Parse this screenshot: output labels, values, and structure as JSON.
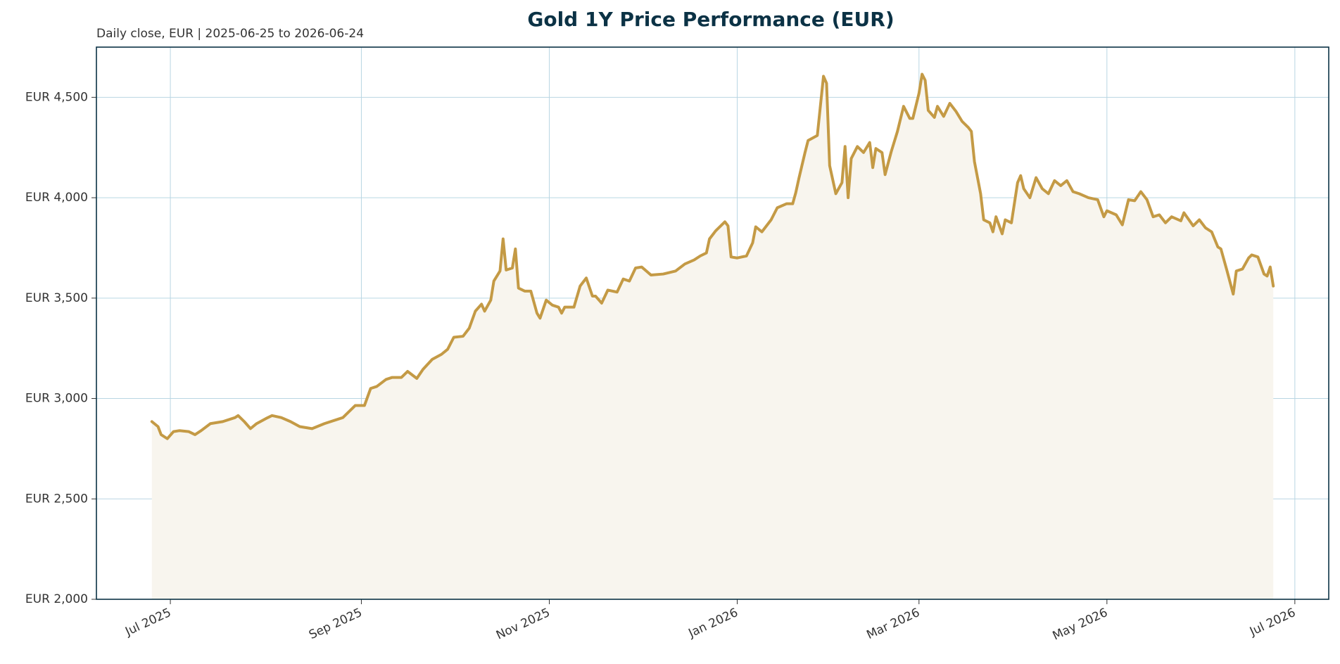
{
  "chart_data": {
    "type": "line",
    "title": "Gold 1Y Price Performance (EUR)",
    "subtitle": "Daily close, EUR | 2025-06-25 to 2026-06-24",
    "x": [
      "2025-06-25",
      "2025-06-27",
      "2025-06-28",
      "2025-06-30",
      "2025-07-02",
      "2025-07-04",
      "2025-07-07",
      "2025-07-09",
      "2025-07-11",
      "2025-07-14",
      "2025-07-18",
      "2025-07-22",
      "2025-07-23",
      "2025-07-25",
      "2025-07-27",
      "2025-07-29",
      "2025-08-01",
      "2025-08-03",
      "2025-08-06",
      "2025-08-09",
      "2025-08-12",
      "2025-08-16",
      "2025-08-20",
      "2025-08-26",
      "2025-08-30",
      "2025-09-02",
      "2025-09-04",
      "2025-09-06",
      "2025-09-09",
      "2025-09-11",
      "2025-09-14",
      "2025-09-16",
      "2025-09-19",
      "2025-09-21",
      "2025-09-24",
      "2025-09-27",
      "2025-09-29",
      "2025-10-01",
      "2025-10-04",
      "2025-10-06",
      "2025-10-08",
      "2025-10-10",
      "2025-10-11",
      "2025-10-13",
      "2025-10-14",
      "2025-10-16",
      "2025-10-17",
      "2025-10-18",
      "2025-10-20",
      "2025-10-21",
      "2025-10-22",
      "2025-10-24",
      "2025-10-26",
      "2025-10-28",
      "2025-10-29",
      "2025-10-31",
      "2025-11-02",
      "2025-11-04",
      "2025-11-05",
      "2025-11-06",
      "2025-11-09",
      "2025-11-11",
      "2025-11-13",
      "2025-11-15",
      "2025-11-16",
      "2025-11-18",
      "2025-11-20",
      "2025-11-23",
      "2025-11-25",
      "2025-11-27",
      "2025-11-29",
      "2025-12-01",
      "2025-12-04",
      "2025-12-08",
      "2025-12-12",
      "2025-12-15",
      "2025-12-18",
      "2025-12-20",
      "2025-12-22",
      "2025-12-23",
      "2025-12-25",
      "2025-12-28",
      "2025-12-29",
      "2025-12-30",
      "2026-01-01",
      "2026-01-04",
      "2026-01-06",
      "2026-01-07",
      "2026-01-09",
      "2026-01-12",
      "2026-01-14",
      "2026-01-17",
      "2026-01-19",
      "2026-01-20",
      "2026-01-21",
      "2026-01-23",
      "2026-01-24",
      "2026-01-27",
      "2026-01-29",
      "2026-01-30",
      "2026-01-31",
      "2026-02-02",
      "2026-02-04",
      "2026-02-05",
      "2026-02-06",
      "2026-02-07",
      "2026-02-09",
      "2026-02-11",
      "2026-02-13",
      "2026-02-14",
      "2026-02-15",
      "2026-02-17",
      "2026-02-18",
      "2026-02-20",
      "2026-02-22",
      "2026-02-24",
      "2026-02-26",
      "2026-02-27",
      "2026-03-01",
      "2026-03-02",
      "2026-03-03",
      "2026-03-04",
      "2026-03-06",
      "2026-03-07",
      "2026-03-09",
      "2026-03-11",
      "2026-03-13",
      "2026-03-15",
      "2026-03-17",
      "2026-03-18",
      "2026-03-19",
      "2026-03-21",
      "2026-03-22",
      "2026-03-24",
      "2026-03-25",
      "2026-03-26",
      "2026-03-28",
      "2026-03-29",
      "2026-03-31",
      "2026-04-02",
      "2026-04-03",
      "2026-04-04",
      "2026-04-06",
      "2026-04-08",
      "2026-04-10",
      "2026-04-12",
      "2026-04-14",
      "2026-04-16",
      "2026-04-18",
      "2026-04-20",
      "2026-04-22",
      "2026-04-25",
      "2026-04-28",
      "2026-04-30",
      "2026-05-01",
      "2026-05-04",
      "2026-05-06",
      "2026-05-08",
      "2026-05-10",
      "2026-05-12",
      "2026-05-14",
      "2026-05-16",
      "2026-05-18",
      "2026-05-20",
      "2026-05-22",
      "2026-05-25",
      "2026-05-26",
      "2026-05-29",
      "2026-05-31",
      "2026-06-02",
      "2026-06-04",
      "2026-06-06",
      "2026-06-07",
      "2026-06-09",
      "2026-06-11",
      "2026-06-12",
      "2026-06-14",
      "2026-06-16",
      "2026-06-17",
      "2026-06-19",
      "2026-06-21",
      "2026-06-22",
      "2026-06-23",
      "2026-06-24"
    ],
    "values": [
      2885,
      2860,
      2820,
      2800,
      2835,
      2840,
      2835,
      2820,
      2840,
      2875,
      2885,
      2905,
      2915,
      2885,
      2850,
      2875,
      2900,
      2915,
      2905,
      2885,
      2860,
      2850,
      2875,
      2905,
      2965,
      2965,
      3050,
      3060,
      3095,
      3105,
      3105,
      3135,
      3100,
      3145,
      3195,
      3220,
      3245,
      3305,
      3310,
      3350,
      3435,
      3470,
      3435,
      3490,
      3585,
      3635,
      3795,
      3640,
      3650,
      3745,
      3550,
      3535,
      3535,
      3425,
      3400,
      3490,
      3465,
      3455,
      3425,
      3455,
      3455,
      3560,
      3600,
      3510,
      3510,
      3475,
      3540,
      3530,
      3595,
      3585,
      3650,
      3655,
      3615,
      3620,
      3635,
      3670,
      3690,
      3710,
      3725,
      3795,
      3835,
      3880,
      3860,
      3705,
      3700,
      3710,
      3775,
      3855,
      3830,
      3890,
      3950,
      3970,
      3970,
      4025,
      4095,
      4225,
      4285,
      4310,
      4605,
      4570,
      4160,
      4020,
      4075,
      4255,
      4000,
      4195,
      4255,
      4225,
      4275,
      4150,
      4245,
      4225,
      4115,
      4230,
      4330,
      4455,
      4395,
      4395,
      4520,
      4615,
      4585,
      4435,
      4400,
      4455,
      4405,
      4470,
      4430,
      4380,
      4350,
      4330,
      4180,
      4020,
      3890,
      3875,
      3830,
      3905,
      3820,
      3890,
      3875,
      4075,
      4110,
      4045,
      4000,
      4100,
      4045,
      4020,
      4085,
      4060,
      4085,
      4030,
      4020,
      4000,
      3990,
      3905,
      3935,
      3915,
      3865,
      3990,
      3985,
      4030,
      3990,
      3905,
      3915,
      3875,
      3905,
      3885,
      3925,
      3860,
      3890,
      3850,
      3830,
      3755,
      3745,
      3635,
      3520,
      3635,
      3645,
      3700,
      3715,
      3705,
      3620,
      3610,
      3655,
      3560
    ],
    "color": "#c49a45",
    "fill": "#f8f5ee",
    "xlim": [
      "2025-06-07",
      "2026-07-12"
    ],
    "xticks": [
      {
        "value": "2025-07-01",
        "label": "Jul 2025"
      },
      {
        "value": "2025-09-01",
        "label": "Sep 2025"
      },
      {
        "value": "2025-11-01",
        "label": "Nov 2025"
      },
      {
        "value": "2026-01-01",
        "label": "Jan 2026"
      },
      {
        "value": "2026-03-01",
        "label": "Mar 2026"
      },
      {
        "value": "2026-05-01",
        "label": "May 2026"
      },
      {
        "value": "2026-07-01",
        "label": "Jul 2026"
      }
    ],
    "ylim": [
      2000,
      4750
    ],
    "yticks": [
      {
        "value": 2000,
        "label": "EUR 2,000"
      },
      {
        "value": 2500,
        "label": "EUR 2,500"
      },
      {
        "value": 3000,
        "label": "EUR 3,000"
      },
      {
        "value": 3500,
        "label": "EUR 3,500"
      },
      {
        "value": 4000,
        "label": "EUR 4,000"
      },
      {
        "value": 4500,
        "label": "EUR 4,500"
      }
    ],
    "grid": true
  }
}
